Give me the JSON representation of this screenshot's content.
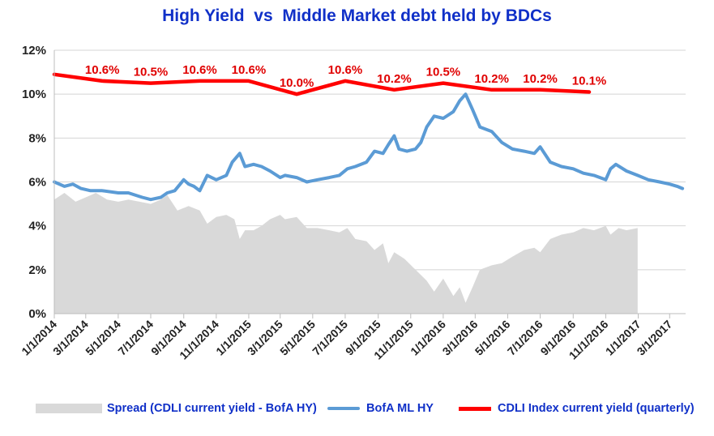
{
  "title": "High Yield  vs  Middle Market debt held by BDCs",
  "chart_data": {
    "type": "line",
    "title": "High Yield  vs  Middle Market debt held by BDCs",
    "ylim": [
      0,
      12
    ],
    "yticks": [
      "0%",
      "2%",
      "4%",
      "6%",
      "8%",
      "10%",
      "12%"
    ],
    "xlim": [
      "2014-01-01",
      "2017-03-31"
    ],
    "xtick_labels": [
      "1/1/2014",
      "3/1/2014",
      "5/1/2014",
      "7/1/2014",
      "9/1/2014",
      "11/1/2014",
      "1/1/2015",
      "3/1/2015",
      "5/1/2015",
      "7/1/2015",
      "9/1/2015",
      "11/1/2015",
      "1/1/2016",
      "3/1/2016",
      "5/1/2016",
      "7/1/2016",
      "9/1/2016",
      "11/1/2016",
      "1/1/2017",
      "3/1/2017"
    ],
    "xtick_dates": [
      "2014-01-01",
      "2014-03-01",
      "2014-05-01",
      "2014-07-01",
      "2014-09-01",
      "2014-11-01",
      "2015-01-01",
      "2015-03-01",
      "2015-05-01",
      "2015-07-01",
      "2015-09-01",
      "2015-11-01",
      "2016-01-01",
      "2016-03-01",
      "2016-05-01",
      "2016-07-01",
      "2016-09-01",
      "2016-11-01",
      "2017-01-01",
      "2017-03-01"
    ],
    "grid": "horizontal",
    "legend_position": "bottom",
    "series": [
      {
        "name": "Spread (CDLI current yield - BofA HY)",
        "kind": "area",
        "color": "#d9d9d9",
        "points": [
          [
            "2014-01-01",
            5.2
          ],
          [
            "2014-01-20",
            5.5
          ],
          [
            "2014-02-10",
            5.1
          ],
          [
            "2014-03-01",
            5.3
          ],
          [
            "2014-03-20",
            5.5
          ],
          [
            "2014-04-10",
            5.2
          ],
          [
            "2014-05-01",
            5.1
          ],
          [
            "2014-05-20",
            5.2
          ],
          [
            "2014-06-10",
            5.1
          ],
          [
            "2014-07-01",
            5.0
          ],
          [
            "2014-07-20",
            5.2
          ],
          [
            "2014-08-01",
            5.4
          ],
          [
            "2014-08-20",
            4.7
          ],
          [
            "2014-09-10",
            4.9
          ],
          [
            "2014-10-01",
            4.7
          ],
          [
            "2014-10-15",
            4.1
          ],
          [
            "2014-11-01",
            4.4
          ],
          [
            "2014-11-20",
            4.5
          ],
          [
            "2014-12-05",
            4.3
          ],
          [
            "2014-12-15",
            3.4
          ],
          [
            "2014-12-25",
            3.8
          ],
          [
            "2015-01-10",
            3.8
          ],
          [
            "2015-01-25",
            4.0
          ],
          [
            "2015-02-10",
            4.3
          ],
          [
            "2015-03-01",
            4.5
          ],
          [
            "2015-03-10",
            4.3
          ],
          [
            "2015-04-01",
            4.4
          ],
          [
            "2015-04-20",
            3.9
          ],
          [
            "2015-05-10",
            3.9
          ],
          [
            "2015-06-01",
            3.8
          ],
          [
            "2015-06-20",
            3.7
          ],
          [
            "2015-07-05",
            3.9
          ],
          [
            "2015-07-20",
            3.4
          ],
          [
            "2015-08-10",
            3.3
          ],
          [
            "2015-08-25",
            2.9
          ],
          [
            "2015-09-10",
            3.2
          ],
          [
            "2015-09-20",
            2.3
          ],
          [
            "2015-10-01",
            2.8
          ],
          [
            "2015-10-20",
            2.5
          ],
          [
            "2015-11-10",
            2.0
          ],
          [
            "2015-12-01",
            1.5
          ],
          [
            "2015-12-15",
            1.0
          ],
          [
            "2016-01-01",
            1.6
          ],
          [
            "2016-01-20",
            0.8
          ],
          [
            "2016-02-01",
            1.2
          ],
          [
            "2016-02-12",
            0.5
          ],
          [
            "2016-02-25",
            1.2
          ],
          [
            "2016-03-10",
            2.0
          ],
          [
            "2016-04-01",
            2.2
          ],
          [
            "2016-04-20",
            2.3
          ],
          [
            "2016-05-10",
            2.6
          ],
          [
            "2016-06-01",
            2.9
          ],
          [
            "2016-06-20",
            3.0
          ],
          [
            "2016-07-01",
            2.8
          ],
          [
            "2016-07-20",
            3.4
          ],
          [
            "2016-08-10",
            3.6
          ],
          [
            "2016-09-01",
            3.7
          ],
          [
            "2016-09-20",
            3.9
          ],
          [
            "2016-10-10",
            3.8
          ],
          [
            "2016-11-01",
            4.0
          ],
          [
            "2016-11-10",
            3.6
          ],
          [
            "2016-11-25",
            3.9
          ],
          [
            "2016-12-10",
            3.8
          ],
          [
            "2016-12-31",
            3.9
          ]
        ]
      },
      {
        "name": "BofA ML HY",
        "kind": "line",
        "color": "#5b9bd5",
        "points": [
          [
            "2014-01-01",
            6.0
          ],
          [
            "2014-01-20",
            5.8
          ],
          [
            "2014-02-05",
            5.9
          ],
          [
            "2014-02-20",
            5.7
          ],
          [
            "2014-03-10",
            5.6
          ],
          [
            "2014-04-01",
            5.6
          ],
          [
            "2014-05-01",
            5.5
          ],
          [
            "2014-05-20",
            5.5
          ],
          [
            "2014-06-15",
            5.3
          ],
          [
            "2014-07-01",
            5.2
          ],
          [
            "2014-07-20",
            5.3
          ],
          [
            "2014-08-01",
            5.5
          ],
          [
            "2014-08-15",
            5.6
          ],
          [
            "2014-09-01",
            6.1
          ],
          [
            "2014-09-10",
            5.9
          ],
          [
            "2014-09-20",
            5.8
          ],
          [
            "2014-10-01",
            5.6
          ],
          [
            "2014-10-15",
            6.3
          ],
          [
            "2014-11-01",
            6.1
          ],
          [
            "2014-11-20",
            6.3
          ],
          [
            "2014-12-01",
            6.9
          ],
          [
            "2014-12-15",
            7.3
          ],
          [
            "2014-12-25",
            6.7
          ],
          [
            "2015-01-10",
            6.8
          ],
          [
            "2015-01-25",
            6.7
          ],
          [
            "2015-02-10",
            6.5
          ],
          [
            "2015-03-01",
            6.2
          ],
          [
            "2015-03-10",
            6.3
          ],
          [
            "2015-04-01",
            6.2
          ],
          [
            "2015-04-20",
            6.0
          ],
          [
            "2015-05-10",
            6.1
          ],
          [
            "2015-06-01",
            6.2
          ],
          [
            "2015-06-20",
            6.3
          ],
          [
            "2015-07-05",
            6.6
          ],
          [
            "2015-07-20",
            6.7
          ],
          [
            "2015-08-10",
            6.9
          ],
          [
            "2015-08-25",
            7.4
          ],
          [
            "2015-09-10",
            7.3
          ],
          [
            "2015-09-20",
            7.7
          ],
          [
            "2015-10-01",
            8.1
          ],
          [
            "2015-10-10",
            7.5
          ],
          [
            "2015-10-25",
            7.4
          ],
          [
            "2015-11-10",
            7.5
          ],
          [
            "2015-11-20",
            7.8
          ],
          [
            "2015-12-01",
            8.5
          ],
          [
            "2015-12-15",
            9.0
          ],
          [
            "2016-01-01",
            8.9
          ],
          [
            "2016-01-20",
            9.2
          ],
          [
            "2016-02-01",
            9.7
          ],
          [
            "2016-02-12",
            10.0
          ],
          [
            "2016-02-25",
            9.3
          ],
          [
            "2016-03-10",
            8.5
          ],
          [
            "2016-04-01",
            8.3
          ],
          [
            "2016-04-20",
            7.8
          ],
          [
            "2016-05-10",
            7.5
          ],
          [
            "2016-06-01",
            7.4
          ],
          [
            "2016-06-20",
            7.3
          ],
          [
            "2016-07-01",
            7.6
          ],
          [
            "2016-07-20",
            6.9
          ],
          [
            "2016-08-10",
            6.7
          ],
          [
            "2016-09-01",
            6.6
          ],
          [
            "2016-09-20",
            6.4
          ],
          [
            "2016-10-10",
            6.3
          ],
          [
            "2016-11-01",
            6.1
          ],
          [
            "2016-11-10",
            6.6
          ],
          [
            "2016-11-20",
            6.8
          ],
          [
            "2016-12-10",
            6.5
          ],
          [
            "2016-12-31",
            6.3
          ],
          [
            "2017-01-20",
            6.1
          ],
          [
            "2017-02-10",
            6.0
          ],
          [
            "2017-03-01",
            5.9
          ],
          [
            "2017-03-15",
            5.8
          ],
          [
            "2017-03-25",
            5.7
          ]
        ]
      },
      {
        "name": "CDLI Index current yield (quarterly)",
        "kind": "line",
        "color": "#ff0000",
        "points": [
          [
            "2014-01-01",
            10.9
          ],
          [
            "2014-04-01",
            10.6
          ],
          [
            "2014-07-01",
            10.5
          ],
          [
            "2014-10-01",
            10.6
          ],
          [
            "2015-01-01",
            10.6
          ],
          [
            "2015-04-01",
            10.0
          ],
          [
            "2015-07-01",
            10.6
          ],
          [
            "2015-10-01",
            10.2
          ],
          [
            "2016-01-01",
            10.5
          ],
          [
            "2016-04-01",
            10.2
          ],
          [
            "2016-07-01",
            10.2
          ],
          [
            "2016-10-01",
            10.1
          ]
        ]
      }
    ],
    "data_labels": [
      {
        "date": "2014-04-01",
        "value": 10.6,
        "text": "10.6%"
      },
      {
        "date": "2014-07-01",
        "value": 10.5,
        "text": "10.5%"
      },
      {
        "date": "2014-10-01",
        "value": 10.6,
        "text": "10.6%"
      },
      {
        "date": "2015-01-01",
        "value": 10.6,
        "text": "10.6%"
      },
      {
        "date": "2015-04-01",
        "value": 10.0,
        "text": "10.0%"
      },
      {
        "date": "2015-07-01",
        "value": 10.6,
        "text": "10.6%"
      },
      {
        "date": "2015-10-01",
        "value": 10.2,
        "text": "10.2%"
      },
      {
        "date": "2016-01-01",
        "value": 10.5,
        "text": "10.5%"
      },
      {
        "date": "2016-04-01",
        "value": 10.2,
        "text": "10.2%"
      },
      {
        "date": "2016-07-01",
        "value": 10.2,
        "text": "10.2%"
      },
      {
        "date": "2016-10-01",
        "value": 10.1,
        "text": "10.1%"
      }
    ]
  },
  "legend": {
    "spread": "Spread (CDLI current yield - BofA HY)",
    "hy": "BofA ML HY",
    "cdli": "CDLI Index current yield (quarterly)"
  }
}
